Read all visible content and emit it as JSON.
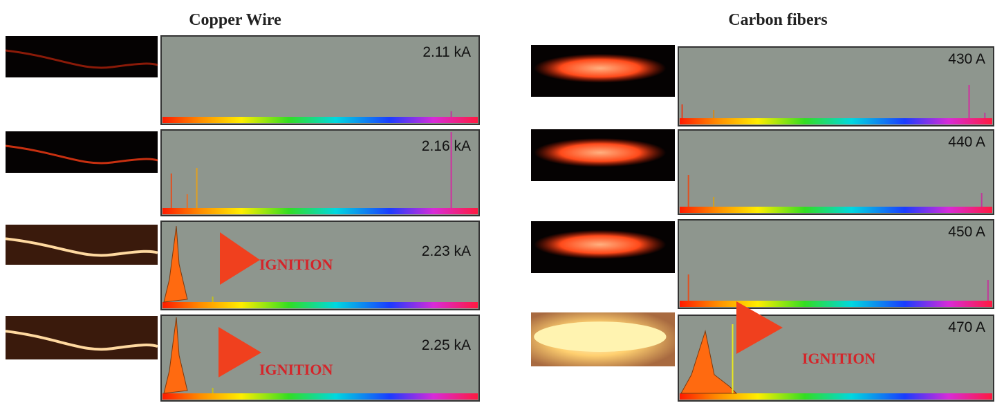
{
  "panels": [
    {
      "title": "Copper Wire",
      "rows": [
        {
          "current": "2.11 kA"
        },
        {
          "current": "2.16 kA"
        },
        {
          "current": "2.23 kA",
          "note": "IGNITION"
        },
        {
          "current": "2.25 kA",
          "note": "IGNITION"
        }
      ]
    },
    {
      "title": "Carbon fibers",
      "rows": [
        {
          "current": "430 A"
        },
        {
          "current": "440 A"
        },
        {
          "current": "450 A"
        },
        {
          "current": "470 A",
          "note": "IGNITION"
        }
      ]
    }
  ]
}
